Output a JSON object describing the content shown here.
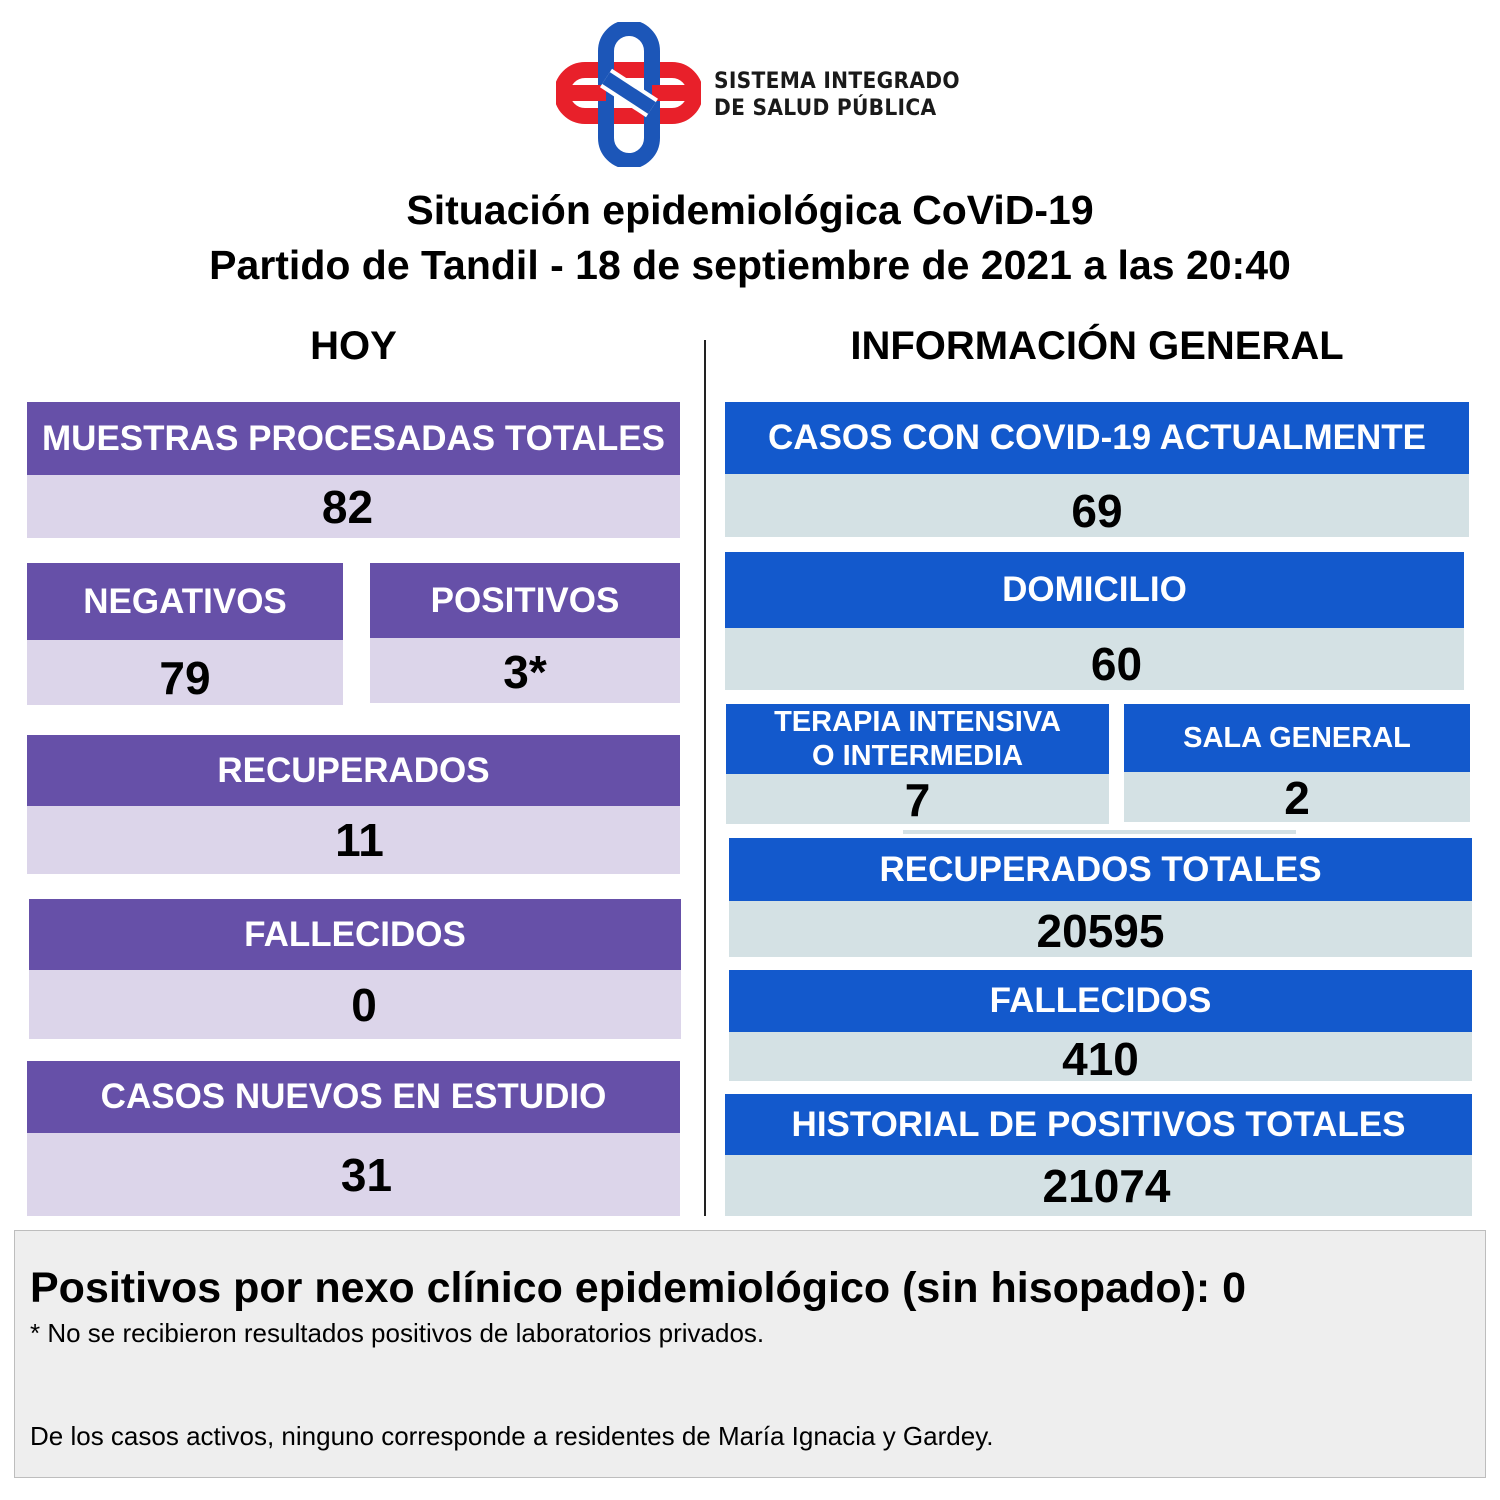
{
  "logo": {
    "line1": "SISTEMA INTEGRADO",
    "line2": "DE SALUD PÚBLICA",
    "colors": {
      "red": "#e8202a",
      "blue": "#1c56b8"
    }
  },
  "title": {
    "line1": "Situación epidemiológica CoViD-19",
    "line2": "Partido de Tandil - 18 de septiembre de 2021 a las 20:40"
  },
  "hoy": {
    "heading": "HOY",
    "muestras": {
      "label": "MUESTRAS PROCESADAS TOTALES",
      "value": "82"
    },
    "negativos": {
      "label": "NEGATIVOS",
      "value": "79"
    },
    "positivos": {
      "label": "POSITIVOS",
      "value": "3*"
    },
    "recuperados": {
      "label": "RECUPERADOS",
      "value": "11"
    },
    "fallecidos": {
      "label": "FALLECIDOS",
      "value": "0"
    },
    "casos_nuevos": {
      "label": "CASOS NUEVOS EN ESTUDIO",
      "value": "31"
    }
  },
  "general": {
    "heading": "INFORMACIÓN GENERAL",
    "casos_actuales": {
      "label": "CASOS CON COVID-19 ACTUALMENTE",
      "value": "69"
    },
    "domicilio": {
      "label": "DOMICILIO",
      "value": "60"
    },
    "terapia": {
      "label_line1": "TERAPIA INTENSIVA",
      "label_line2": "O INTERMEDIA",
      "value": "7"
    },
    "sala_general": {
      "label": "SALA GENERAL",
      "value": "2"
    },
    "recuperados_totales": {
      "label": "RECUPERADOS TOTALES",
      "value": "20595"
    },
    "fallecidos": {
      "label": "FALLECIDOS",
      "value": "410"
    },
    "historial": {
      "label": "HISTORIAL DE POSITIVOS TOTALES",
      "value": "21074"
    }
  },
  "footer": {
    "main": "Positivos por nexo clínico epidemiológico (sin hisopado): 0",
    "note1": "* No se recibieron resultados positivos de laboratorios privados.",
    "note2": "De los casos activos, ninguno corresponde a residentes de María Ignacia y Gardey."
  }
}
